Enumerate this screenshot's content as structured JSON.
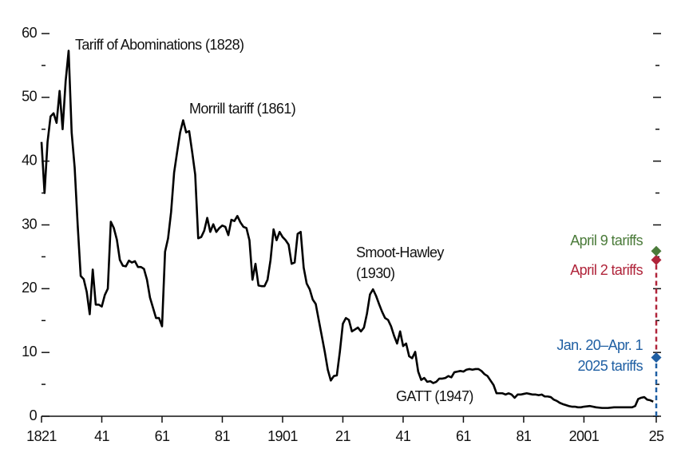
{
  "chart_data": {
    "type": "line",
    "color": "#000000",
    "x": [
      1821,
      1822,
      1823,
      1824,
      1825,
      1826,
      1827,
      1828,
      1829,
      1830,
      1831,
      1832,
      1833,
      1834,
      1835,
      1836,
      1837,
      1838,
      1839,
      1840,
      1841,
      1842,
      1843,
      1844,
      1845,
      1846,
      1847,
      1848,
      1849,
      1850,
      1851,
      1852,
      1853,
      1854,
      1855,
      1856,
      1857,
      1858,
      1859,
      1860,
      1861,
      1862,
      1863,
      1864,
      1865,
      1866,
      1867,
      1868,
      1869,
      1870,
      1871,
      1872,
      1873,
      1874,
      1875,
      1876,
      1877,
      1878,
      1879,
      1880,
      1881,
      1882,
      1883,
      1884,
      1885,
      1886,
      1887,
      1888,
      1889,
      1890,
      1891,
      1892,
      1893,
      1894,
      1895,
      1896,
      1897,
      1898,
      1899,
      1900,
      1901,
      1902,
      1903,
      1904,
      1905,
      1906,
      1907,
      1908,
      1909,
      1910,
      1911,
      1912,
      1913,
      1914,
      1915,
      1916,
      1917,
      1918,
      1919,
      1920,
      1921,
      1922,
      1923,
      1924,
      1925,
      1926,
      1927,
      1928,
      1929,
      1930,
      1931,
      1932,
      1933,
      1934,
      1935,
      1936,
      1937,
      1938,
      1939,
      1940,
      1941,
      1942,
      1943,
      1944,
      1945,
      1946,
      1947,
      1948,
      1949,
      1950,
      1951,
      1952,
      1953,
      1954,
      1955,
      1956,
      1957,
      1958,
      1959,
      1960,
      1961,
      1962,
      1963,
      1964,
      1965,
      1966,
      1967,
      1968,
      1969,
      1970,
      1971,
      1972,
      1973,
      1974,
      1975,
      1976,
      1977,
      1978,
      1979,
      1980,
      1981,
      1982,
      1983,
      1984,
      1985,
      1986,
      1987,
      1988,
      1989,
      1990,
      1991,
      1992,
      1993,
      1994,
      1995,
      1996,
      1997,
      1998,
      1999,
      2000,
      2001,
      2003,
      2005,
      2007,
      2009,
      2011,
      2013,
      2015,
      2017,
      2018,
      2019,
      2020,
      2021,
      2022,
      2023,
      2024
    ],
    "values": [
      43,
      35,
      43,
      47,
      47.5,
      46,
      51,
      45,
      52.5,
      57.3,
      44.5,
      39,
      30,
      22,
      21.5,
      19.5,
      16,
      23,
      17.5,
      17.5,
      17.2,
      19,
      20,
      30.5,
      29.5,
      27.7,
      24.5,
      23.6,
      23.5,
      24.4,
      24.1,
      24.3,
      23.4,
      23.4,
      23.1,
      21.4,
      18.6,
      17,
      15.4,
      15.4,
      14.1,
      25.8,
      27.9,
      32,
      38.2,
      41.4,
      44.5,
      46.4,
      44.5,
      44.7,
      41.4,
      37.9,
      27.9,
      28.1,
      29.1,
      31.1,
      28.9,
      30.1,
      28.9,
      29.5,
      29.9,
      29.7,
      28.4,
      30.8,
      30.6,
      31.4,
      30.4,
      29.7,
      29.5,
      27.6,
      21.4,
      23.9,
      20.5,
      20.4,
      20.4,
      21.4,
      24.5,
      29.3,
      27.6,
      28.9,
      28.1,
      27.6,
      26.9,
      23.9,
      24.1,
      28.6,
      28.9,
      23.3,
      20.8,
      19.9,
      18.3,
      17.6,
      15.1,
      12.6,
      10.1,
      7.3,
      5.6,
      6.3,
      6.4,
      10.1,
      14.5,
      15.4,
      15.1,
      13.3,
      13.6,
      13.9,
      13.3,
      13.9,
      16.1,
      19.1,
      19.9,
      18.9,
      17.6,
      16.4,
      15.4,
      15.1,
      14.1,
      12.6,
      11.4,
      13.3,
      11,
      11.4,
      9.4,
      9.1,
      10.1,
      7,
      5.7,
      6,
      5.4,
      5.5,
      5.2,
      5.4,
      5.9,
      5.9,
      6,
      6.3,
      6.1,
      6.9,
      7,
      7.1,
      7,
      7.3,
      7.4,
      7.3,
      7.4,
      7.4,
      7.1,
      6.6,
      6.3,
      5.6,
      4.9,
      3.6,
      3.6,
      3.6,
      3.4,
      3.6,
      3.4,
      2.9,
      3.4,
      3.4,
      3.5,
      3.6,
      3.5,
      3.4,
      3.4,
      3.3,
      3.4,
      3.1,
      3.1,
      3,
      2.6,
      2.4,
      2.1,
      1.9,
      1.75,
      1.6,
      1.5,
      1.5,
      1.4,
      1.4,
      1.5,
      1.6,
      1.4,
      1.3,
      1.3,
      1.4,
      1.4,
      1.4,
      1.4,
      1.6,
      2.7,
      2.9,
      3,
      2.6,
      2.5,
      2.3
    ],
    "xlim": [
      1821,
      2025
    ],
    "xticks": [
      1821,
      {
        "value": 1841,
        "label": "41"
      },
      {
        "value": 1861,
        "label": "61"
      },
      {
        "value": 1881,
        "label": "81"
      },
      1901,
      {
        "value": 1921,
        "label": "21"
      },
      {
        "value": 1941,
        "label": "41"
      },
      {
        "value": 1961,
        "label": "61"
      },
      {
        "value": 1981,
        "label": "81"
      },
      2001,
      {
        "value": 2025,
        "label": "25"
      }
    ],
    "ylim": [
      0,
      60
    ],
    "yticks": [
      0,
      10,
      20,
      30,
      40,
      50,
      60
    ],
    "y_minor_ticks": [
      5,
      15,
      25,
      35,
      45,
      55
    ],
    "annotations": [
      {
        "lines": [
          "Tariff of Abominations (1828)"
        ]
      },
      {
        "lines": [
          "Morrill tariff (1861)"
        ]
      },
      {
        "lines": [
          "Smoot-Hawley",
          "(1930)"
        ]
      },
      {
        "lines": [
          "GATT (1947)"
        ]
      }
    ],
    "markers": [
      {
        "lines": [
          "Jan. 20–Apr. 1",
          "2025 tariffs"
        ],
        "x": 2025,
        "value": 9.2,
        "color": "#1f5fa3"
      },
      {
        "lines": [
          "April 2 tariffs"
        ],
        "x": 2025,
        "value": 24.5,
        "color": "#b0243a"
      },
      {
        "lines": [
          "April 9 tariffs"
        ],
        "x": 2025,
        "value": 25.9,
        "color": "#4b7b3a"
      }
    ]
  }
}
